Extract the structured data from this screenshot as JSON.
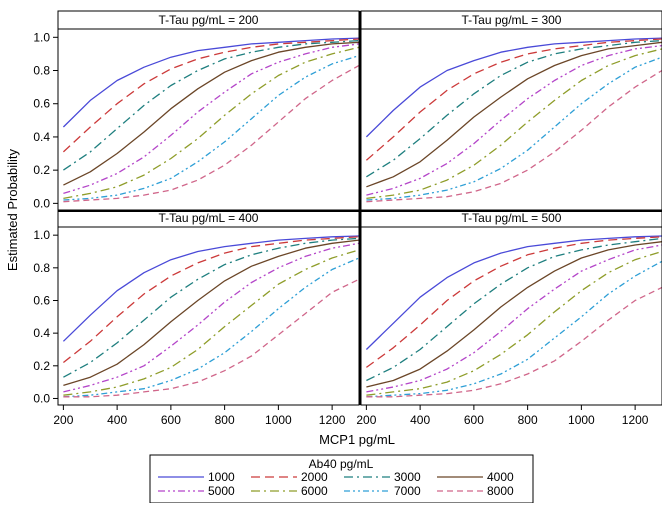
{
  "chart_data": {
    "type": "line",
    "ylabel": "Estimated Probability",
    "xlabel": "MCP1 pg/mL",
    "xlim": [
      180,
      1300
    ],
    "ylim": [
      -0.04,
      1.05
    ],
    "x_ticks": [
      200,
      400,
      600,
      800,
      1000,
      1200
    ],
    "y_ticks": [
      0.0,
      0.2,
      0.4,
      0.6,
      0.8,
      1.0
    ],
    "y_tick_labels": [
      "0.0",
      "0.2",
      "0.4",
      "0.6",
      "0.8",
      "1.0"
    ],
    "grid": false,
    "x": [
      200,
      300,
      400,
      500,
      600,
      700,
      800,
      900,
      1000,
      1100,
      1200,
      1300
    ],
    "legend": {
      "title": "Ab40 pg/mL",
      "placement": "bottom-center"
    },
    "series_styles": [
      {
        "name": "1000",
        "color": "#4a4ad8",
        "dash": ""
      },
      {
        "name": "2000",
        "color": "#cc3a3a",
        "dash": "9,5"
      },
      {
        "name": "3000",
        "color": "#1f7f7f",
        "dash": "9,4,2,4"
      },
      {
        "name": "4000",
        "color": "#6b4628",
        "dash": ""
      },
      {
        "name": "5000",
        "color": "#b445c9",
        "dash": "7,3,2,3,2,3"
      },
      {
        "name": "6000",
        "color": "#8f9d2a",
        "dash": "9,4,2,4"
      },
      {
        "name": "7000",
        "color": "#2e9fd6",
        "dash": "6,3,2,3,2,3"
      },
      {
        "name": "8000",
        "color": "#d0668a",
        "dash": "6,4"
      }
    ],
    "panels": [
      {
        "title": "T-Tau pg/mL = 200",
        "series": [
          {
            "name": "1000",
            "values": [
              0.46,
              0.62,
              0.74,
              0.82,
              0.88,
              0.92,
              0.94,
              0.96,
              0.97,
              0.98,
              0.99,
              0.995
            ]
          },
          {
            "name": "2000",
            "values": [
              0.31,
              0.46,
              0.6,
              0.72,
              0.81,
              0.87,
              0.91,
              0.94,
              0.96,
              0.97,
              0.98,
              0.99
            ]
          },
          {
            "name": "3000",
            "values": [
              0.2,
              0.31,
              0.45,
              0.59,
              0.71,
              0.8,
              0.87,
              0.91,
              0.94,
              0.96,
              0.97,
              0.98
            ]
          },
          {
            "name": "4000",
            "values": [
              0.11,
              0.19,
              0.3,
              0.43,
              0.57,
              0.69,
              0.79,
              0.86,
              0.91,
              0.94,
              0.96,
              0.97
            ]
          },
          {
            "name": "5000",
            "values": [
              0.06,
              0.11,
              0.18,
              0.28,
              0.41,
              0.55,
              0.67,
              0.78,
              0.85,
              0.9,
              0.94,
              0.96
            ]
          },
          {
            "name": "6000",
            "values": [
              0.03,
              0.06,
              0.1,
              0.17,
              0.27,
              0.39,
              0.53,
              0.66,
              0.77,
              0.85,
              0.9,
              0.94
            ]
          },
          {
            "name": "7000",
            "values": [
              0.02,
              0.03,
              0.05,
              0.09,
              0.15,
              0.25,
              0.37,
              0.51,
              0.65,
              0.76,
              0.84,
              0.89
            ]
          },
          {
            "name": "8000",
            "values": [
              0.01,
              0.02,
              0.03,
              0.05,
              0.08,
              0.14,
              0.23,
              0.35,
              0.49,
              0.63,
              0.74,
              0.83
            ]
          }
        ]
      },
      {
        "title": "T-Tau pg/mL = 300",
        "series": [
          {
            "name": "1000",
            "values": [
              0.4,
              0.56,
              0.7,
              0.8,
              0.86,
              0.91,
              0.94,
              0.96,
              0.97,
              0.98,
              0.99,
              0.995
            ]
          },
          {
            "name": "2000",
            "values": [
              0.26,
              0.4,
              0.55,
              0.68,
              0.78,
              0.85,
              0.9,
              0.93,
              0.95,
              0.97,
              0.98,
              0.99
            ]
          },
          {
            "name": "3000",
            "values": [
              0.16,
              0.26,
              0.39,
              0.53,
              0.66,
              0.77,
              0.85,
              0.9,
              0.93,
              0.95,
              0.97,
              0.98
            ]
          },
          {
            "name": "4000",
            "values": [
              0.1,
              0.16,
              0.25,
              0.38,
              0.52,
              0.64,
              0.75,
              0.83,
              0.89,
              0.93,
              0.95,
              0.97
            ]
          },
          {
            "name": "5000",
            "values": [
              0.05,
              0.09,
              0.15,
              0.24,
              0.36,
              0.5,
              0.63,
              0.74,
              0.83,
              0.89,
              0.93,
              0.95
            ]
          },
          {
            "name": "6000",
            "values": [
              0.03,
              0.05,
              0.08,
              0.14,
              0.23,
              0.35,
              0.49,
              0.62,
              0.74,
              0.83,
              0.89,
              0.93
            ]
          },
          {
            "name": "7000",
            "values": [
              0.02,
              0.03,
              0.05,
              0.08,
              0.13,
              0.21,
              0.32,
              0.46,
              0.6,
              0.72,
              0.82,
              0.88
            ]
          },
          {
            "name": "8000",
            "values": [
              0.01,
              0.02,
              0.03,
              0.04,
              0.07,
              0.12,
              0.2,
              0.31,
              0.44,
              0.58,
              0.7,
              0.8
            ]
          }
        ]
      },
      {
        "title": "T-Tau pg/mL = 400",
        "series": [
          {
            "name": "1000",
            "values": [
              0.35,
              0.51,
              0.66,
              0.77,
              0.85,
              0.9,
              0.93,
              0.95,
              0.97,
              0.98,
              0.99,
              0.995
            ]
          },
          {
            "name": "2000",
            "values": [
              0.22,
              0.35,
              0.5,
              0.64,
              0.75,
              0.83,
              0.89,
              0.93,
              0.95,
              0.97,
              0.98,
              0.99
            ]
          },
          {
            "name": "3000",
            "values": [
              0.13,
              0.22,
              0.34,
              0.48,
              0.62,
              0.73,
              0.82,
              0.88,
              0.92,
              0.95,
              0.97,
              0.98
            ]
          },
          {
            "name": "4000",
            "values": [
              0.08,
              0.13,
              0.21,
              0.33,
              0.47,
              0.6,
              0.72,
              0.81,
              0.87,
              0.92,
              0.95,
              0.97
            ]
          },
          {
            "name": "5000",
            "values": [
              0.04,
              0.08,
              0.13,
              0.2,
              0.32,
              0.45,
              0.59,
              0.71,
              0.8,
              0.87,
              0.92,
              0.95
            ]
          },
          {
            "name": "6000",
            "values": [
              0.02,
              0.04,
              0.07,
              0.12,
              0.19,
              0.3,
              0.44,
              0.57,
              0.7,
              0.79,
              0.86,
              0.91
            ]
          },
          {
            "name": "7000",
            "values": [
              0.01,
              0.02,
              0.04,
              0.06,
              0.11,
              0.18,
              0.28,
              0.41,
              0.55,
              0.68,
              0.79,
              0.86
            ]
          },
          {
            "name": "8000",
            "values": [
              0.01,
              0.01,
              0.02,
              0.04,
              0.06,
              0.1,
              0.17,
              0.26,
              0.39,
              0.52,
              0.65,
              0.73
            ]
          }
        ]
      },
      {
        "title": "T-Tau pg/mL = 500",
        "series": [
          {
            "name": "1000",
            "values": [
              0.3,
              0.46,
              0.62,
              0.74,
              0.83,
              0.89,
              0.93,
              0.95,
              0.97,
              0.98,
              0.99,
              0.995
            ]
          },
          {
            "name": "2000",
            "values": [
              0.19,
              0.31,
              0.45,
              0.6,
              0.72,
              0.81,
              0.88,
              0.92,
              0.95,
              0.97,
              0.98,
              0.99
            ]
          },
          {
            "name": "3000",
            "values": [
              0.11,
              0.19,
              0.3,
              0.44,
              0.58,
              0.7,
              0.8,
              0.87,
              0.91,
              0.94,
              0.96,
              0.98
            ]
          },
          {
            "name": "4000",
            "values": [
              0.07,
              0.11,
              0.18,
              0.29,
              0.42,
              0.56,
              0.68,
              0.78,
              0.86,
              0.91,
              0.94,
              0.96
            ]
          },
          {
            "name": "5000",
            "values": [
              0.04,
              0.07,
              0.11,
              0.18,
              0.28,
              0.41,
              0.55,
              0.67,
              0.78,
              0.85,
              0.91,
              0.94
            ]
          },
          {
            "name": "6000",
            "values": [
              0.02,
              0.04,
              0.06,
              0.1,
              0.17,
              0.27,
              0.39,
              0.53,
              0.66,
              0.77,
              0.85,
              0.9
            ]
          },
          {
            "name": "7000",
            "values": [
              0.01,
              0.02,
              0.03,
              0.05,
              0.09,
              0.15,
              0.24,
              0.37,
              0.5,
              0.64,
              0.75,
              0.84
            ]
          },
          {
            "name": "8000",
            "values": [
              0.01,
              0.01,
              0.02,
              0.03,
              0.05,
              0.09,
              0.15,
              0.23,
              0.35,
              0.48,
              0.6,
              0.68
            ]
          }
        ]
      }
    ]
  }
}
